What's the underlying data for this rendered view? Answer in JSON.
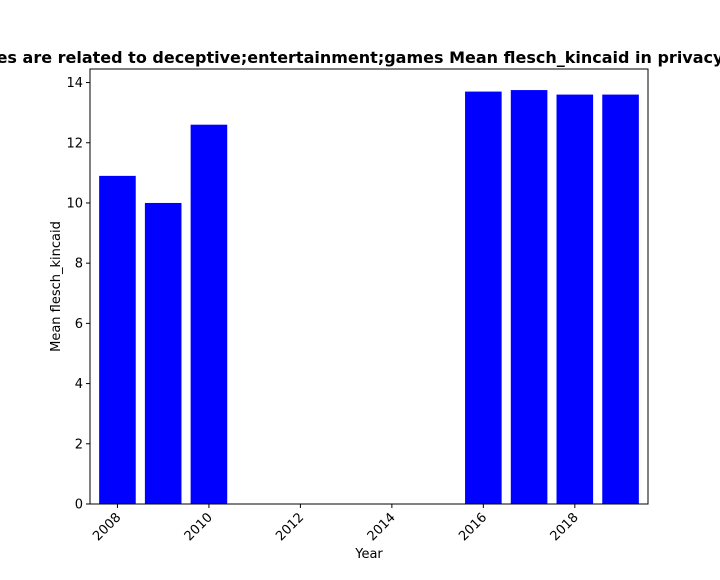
{
  "chart_data": {
    "type": "bar",
    "title": "es are related to deceptive;entertainment;games Mean flesch_kincaid in privacy",
    "xlabel": "Year",
    "ylabel": "Mean flesch_kincaid",
    "bar_color": "#0000ff",
    "xlim": [
      2007.4,
      2019.6
    ],
    "ylim": [
      0,
      14.45
    ],
    "x_ticks": [
      2008,
      2010,
      2012,
      2014,
      2016,
      2018
    ],
    "y_ticks": [
      0,
      2,
      4,
      6,
      8,
      10,
      12,
      14
    ],
    "grid": false,
    "x": [
      2008,
      2009,
      2010,
      2016,
      2017,
      2018,
      2019
    ],
    "values": [
      10.9,
      10.0,
      12.6,
      13.7,
      13.75,
      13.6,
      13.6
    ]
  }
}
